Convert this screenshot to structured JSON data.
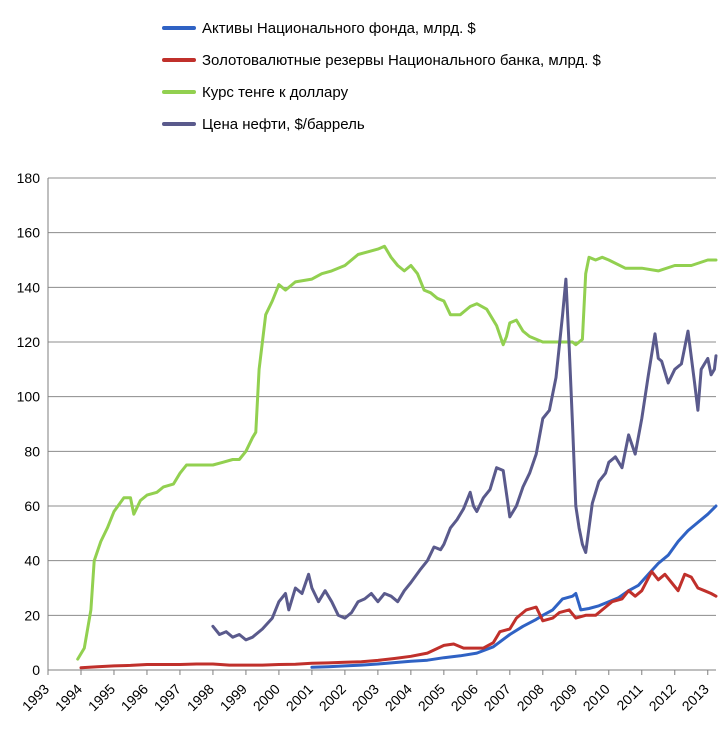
{
  "chart_data": {
    "type": "line",
    "title": "",
    "xlabel": "",
    "ylabel": "",
    "ylim": [
      0,
      180
    ],
    "yticks": [
      0,
      20,
      40,
      60,
      80,
      100,
      120,
      140,
      160,
      180
    ],
    "xlim": [
      1993,
      2013.25
    ],
    "xtick_labels": [
      "1993",
      "1994",
      "1995",
      "1996",
      "1997",
      "1998",
      "1999",
      "2000",
      "2001",
      "2002",
      "2003",
      "2004",
      "2005",
      "2006",
      "2007",
      "2008",
      "2009",
      "2010",
      "2011",
      "2012",
      "2013"
    ],
    "grid": "horizontal",
    "legend_position": "top",
    "series": [
      {
        "name": "Активы Национального фонда,  млрд. $",
        "color": "#2f62c4",
        "points": [
          [
            2001.0,
            1
          ],
          [
            2001.5,
            1.2
          ],
          [
            2002.0,
            1.5
          ],
          [
            2002.5,
            1.8
          ],
          [
            2003.0,
            2.2
          ],
          [
            2003.5,
            2.7
          ],
          [
            2004.0,
            3.2
          ],
          [
            2004.5,
            3.6
          ],
          [
            2005.0,
            4.5
          ],
          [
            2005.5,
            5.2
          ],
          [
            2006.0,
            6.2
          ],
          [
            2006.5,
            8.5
          ],
          [
            2007.0,
            13
          ],
          [
            2007.4,
            16
          ],
          [
            2007.8,
            18.5
          ],
          [
            2008.0,
            20
          ],
          [
            2008.3,
            22
          ],
          [
            2008.6,
            26
          ],
          [
            2008.9,
            27
          ],
          [
            2009.0,
            28
          ],
          [
            2009.15,
            22
          ],
          [
            2009.4,
            22.5
          ],
          [
            2009.7,
            23.5
          ],
          [
            2010.0,
            25
          ],
          [
            2010.3,
            26.5
          ],
          [
            2010.6,
            29
          ],
          [
            2010.9,
            31
          ],
          [
            2011.2,
            35
          ],
          [
            2011.5,
            39
          ],
          [
            2011.8,
            42
          ],
          [
            2012.1,
            47
          ],
          [
            2012.4,
            51
          ],
          [
            2012.7,
            54
          ],
          [
            2013.0,
            57
          ],
          [
            2013.25,
            60
          ]
        ]
      },
      {
        "name": "Золотовалютные резервы Национального банка, млрд. $",
        "color": "#c0302b",
        "points": [
          [
            1994.0,
            0.8
          ],
          [
            1994.5,
            1.2
          ],
          [
            1995.0,
            1.5
          ],
          [
            1995.5,
            1.7
          ],
          [
            1996.0,
            2
          ],
          [
            1996.5,
            2
          ],
          [
            1997.0,
            2
          ],
          [
            1997.5,
            2.2
          ],
          [
            1998.0,
            2.2
          ],
          [
            1998.5,
            1.8
          ],
          [
            1999.0,
            1.8
          ],
          [
            1999.5,
            1.8
          ],
          [
            2000.0,
            2
          ],
          [
            2000.5,
            2.1
          ],
          [
            2001.0,
            2.5
          ],
          [
            2001.5,
            2.6
          ],
          [
            2002.0,
            2.8
          ],
          [
            2002.5,
            3
          ],
          [
            2003.0,
            3.5
          ],
          [
            2003.5,
            4.2
          ],
          [
            2004.0,
            5
          ],
          [
            2004.5,
            6.2
          ],
          [
            2005.0,
            9
          ],
          [
            2005.3,
            9.5
          ],
          [
            2005.6,
            8
          ],
          [
            2005.9,
            8
          ],
          [
            2006.2,
            8
          ],
          [
            2006.5,
            10
          ],
          [
            2006.7,
            14
          ],
          [
            2007.0,
            15
          ],
          [
            2007.2,
            19
          ],
          [
            2007.5,
            22
          ],
          [
            2007.8,
            23
          ],
          [
            2008.0,
            18
          ],
          [
            2008.3,
            19
          ],
          [
            2008.5,
            21
          ],
          [
            2008.8,
            22
          ],
          [
            2009.0,
            19
          ],
          [
            2009.3,
            20
          ],
          [
            2009.6,
            20
          ],
          [
            2009.9,
            23
          ],
          [
            2010.1,
            25
          ],
          [
            2010.4,
            26
          ],
          [
            2010.6,
            29
          ],
          [
            2010.8,
            27
          ],
          [
            2011.0,
            29
          ],
          [
            2011.3,
            36
          ],
          [
            2011.5,
            33
          ],
          [
            2011.7,
            35
          ],
          [
            2011.9,
            32
          ],
          [
            2012.1,
            29
          ],
          [
            2012.3,
            35
          ],
          [
            2012.5,
            34
          ],
          [
            2012.7,
            30
          ],
          [
            2012.9,
            29
          ],
          [
            2013.1,
            28
          ],
          [
            2013.25,
            27
          ]
        ]
      },
      {
        "name": "Курс тенге к доллару",
        "color": "#92d050",
        "points": [
          [
            1993.9,
            4
          ],
          [
            1994.1,
            8
          ],
          [
            1994.3,
            22
          ],
          [
            1994.4,
            40
          ],
          [
            1994.6,
            47
          ],
          [
            1994.8,
            52
          ],
          [
            1995.0,
            58
          ],
          [
            1995.3,
            63
          ],
          [
            1995.5,
            63
          ],
          [
            1995.6,
            57
          ],
          [
            1995.8,
            62
          ],
          [
            1996.0,
            64
          ],
          [
            1996.3,
            65
          ],
          [
            1996.5,
            67
          ],
          [
            1996.8,
            68
          ],
          [
            1997.0,
            72
          ],
          [
            1997.2,
            75
          ],
          [
            1997.5,
            75
          ],
          [
            1998.0,
            75
          ],
          [
            1998.3,
            76
          ],
          [
            1998.6,
            77
          ],
          [
            1998.8,
            77
          ],
          [
            1999.0,
            80
          ],
          [
            1999.2,
            85
          ],
          [
            1999.3,
            87
          ],
          [
            1999.4,
            110
          ],
          [
            1999.6,
            130
          ],
          [
            1999.8,
            135
          ],
          [
            2000.0,
            141
          ],
          [
            2000.2,
            139
          ],
          [
            2000.5,
            142
          ],
          [
            2001.0,
            143
          ],
          [
            2001.3,
            145
          ],
          [
            2001.6,
            146
          ],
          [
            2002.0,
            148
          ],
          [
            2002.4,
            152
          ],
          [
            2002.7,
            153
          ],
          [
            2003.0,
            154
          ],
          [
            2003.2,
            155
          ],
          [
            2003.4,
            151
          ],
          [
            2003.6,
            148
          ],
          [
            2003.8,
            146
          ],
          [
            2004.0,
            148
          ],
          [
            2004.2,
            145
          ],
          [
            2004.4,
            139
          ],
          [
            2004.6,
            138
          ],
          [
            2004.8,
            136
          ],
          [
            2005.0,
            135
          ],
          [
            2005.2,
            130
          ],
          [
            2005.5,
            130
          ],
          [
            2005.8,
            133
          ],
          [
            2006.0,
            134
          ],
          [
            2006.3,
            132
          ],
          [
            2006.6,
            126
          ],
          [
            2006.8,
            119
          ],
          [
            2006.9,
            122
          ],
          [
            2007.0,
            127
          ],
          [
            2007.2,
            128
          ],
          [
            2007.4,
            124
          ],
          [
            2007.6,
            122
          ],
          [
            2007.8,
            121
          ],
          [
            2008.0,
            120
          ],
          [
            2008.5,
            120
          ],
          [
            2008.9,
            120
          ],
          [
            2009.0,
            119
          ],
          [
            2009.2,
            121
          ],
          [
            2009.3,
            145
          ],
          [
            2009.4,
            151
          ],
          [
            2009.6,
            150
          ],
          [
            2009.8,
            151
          ],
          [
            2010.0,
            150
          ],
          [
            2010.5,
            147
          ],
          [
            2011.0,
            147
          ],
          [
            2011.5,
            146
          ],
          [
            2012.0,
            148
          ],
          [
            2012.5,
            148
          ],
          [
            2013.0,
            150
          ],
          [
            2013.25,
            150
          ]
        ]
      },
      {
        "name": "Цена нефти, $/баррель",
        "color": "#5a5a8c",
        "points": [
          [
            1998.0,
            16
          ],
          [
            1998.2,
            13
          ],
          [
            1998.4,
            14
          ],
          [
            1998.6,
            12
          ],
          [
            1998.8,
            13
          ],
          [
            1999.0,
            11
          ],
          [
            1999.2,
            12
          ],
          [
            1999.5,
            15
          ],
          [
            1999.8,
            19
          ],
          [
            2000.0,
            25
          ],
          [
            2000.2,
            28
          ],
          [
            2000.3,
            22
          ],
          [
            2000.5,
            30
          ],
          [
            2000.7,
            28
          ],
          [
            2000.9,
            35
          ],
          [
            2001.0,
            30
          ],
          [
            2001.2,
            25
          ],
          [
            2001.4,
            29
          ],
          [
            2001.6,
            25
          ],
          [
            2001.8,
            20
          ],
          [
            2002.0,
            19
          ],
          [
            2002.2,
            21
          ],
          [
            2002.4,
            25
          ],
          [
            2002.6,
            26
          ],
          [
            2002.8,
            28
          ],
          [
            2003.0,
            25
          ],
          [
            2003.2,
            28
          ],
          [
            2003.4,
            27
          ],
          [
            2003.6,
            25
          ],
          [
            2003.8,
            29
          ],
          [
            2004.0,
            32
          ],
          [
            2004.3,
            37
          ],
          [
            2004.5,
            40
          ],
          [
            2004.7,
            45
          ],
          [
            2004.9,
            44
          ],
          [
            2005.0,
            46
          ],
          [
            2005.2,
            52
          ],
          [
            2005.4,
            55
          ],
          [
            2005.6,
            59
          ],
          [
            2005.8,
            65
          ],
          [
            2005.9,
            60
          ],
          [
            2006.0,
            58
          ],
          [
            2006.2,
            63
          ],
          [
            2006.4,
            66
          ],
          [
            2006.6,
            74
          ],
          [
            2006.8,
            73
          ],
          [
            2007.0,
            56
          ],
          [
            2007.2,
            60
          ],
          [
            2007.4,
            67
          ],
          [
            2007.6,
            72
          ],
          [
            2007.8,
            79
          ],
          [
            2008.0,
            92
          ],
          [
            2008.2,
            95
          ],
          [
            2008.4,
            107
          ],
          [
            2008.6,
            130
          ],
          [
            2008.7,
            143
          ],
          [
            2008.8,
            118
          ],
          [
            2008.9,
            90
          ],
          [
            2009.0,
            60
          ],
          [
            2009.1,
            52
          ],
          [
            2009.2,
            46
          ],
          [
            2009.3,
            43
          ],
          [
            2009.4,
            52
          ],
          [
            2009.5,
            61
          ],
          [
            2009.7,
            69
          ],
          [
            2009.9,
            72
          ],
          [
            2010.0,
            76
          ],
          [
            2010.2,
            78
          ],
          [
            2010.4,
            74
          ],
          [
            2010.6,
            86
          ],
          [
            2010.8,
            79
          ],
          [
            2011.0,
            92
          ],
          [
            2011.2,
            108
          ],
          [
            2011.4,
            123
          ],
          [
            2011.5,
            114
          ],
          [
            2011.6,
            113
          ],
          [
            2011.8,
            105
          ],
          [
            2012.0,
            110
          ],
          [
            2012.2,
            112
          ],
          [
            2012.4,
            124
          ],
          [
            2012.6,
            105
          ],
          [
            2012.7,
            95
          ],
          [
            2012.8,
            110
          ],
          [
            2013.0,
            114
          ],
          [
            2013.1,
            108
          ],
          [
            2013.2,
            110
          ],
          [
            2013.25,
            115
          ]
        ]
      }
    ]
  }
}
